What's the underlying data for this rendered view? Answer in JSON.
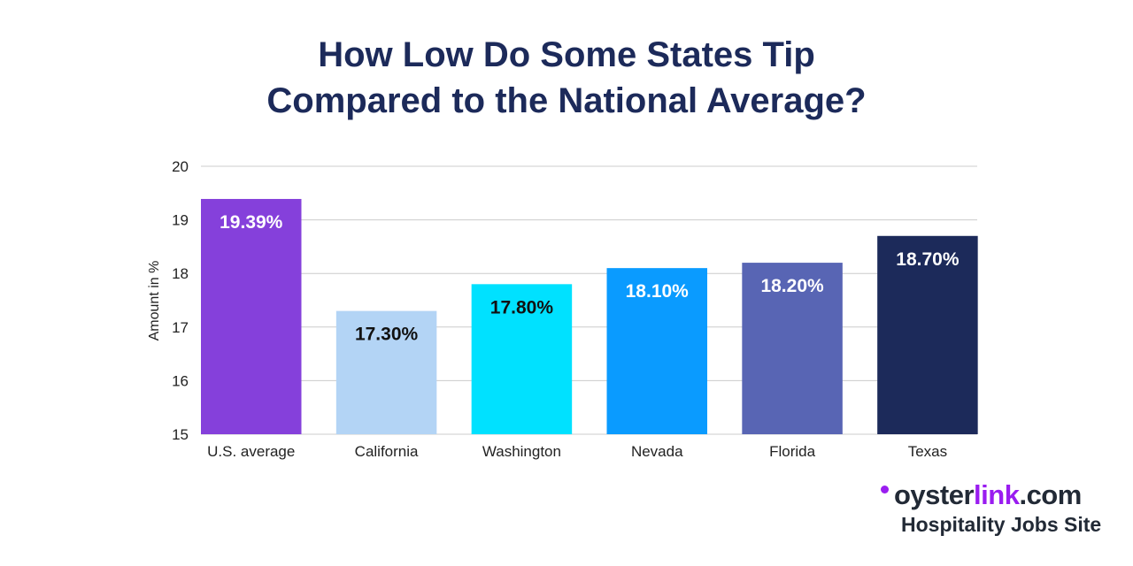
{
  "chart_data": {
    "type": "bar",
    "title": [
      "How Low Do Some States Tip",
      "Compared to the National Average?"
    ],
    "xlabel": "",
    "ylabel": "Amount in %",
    "ylim": [
      15,
      20
    ],
    "yticks": [
      15,
      16,
      17,
      18,
      19,
      20
    ],
    "grid": true,
    "categories": [
      "U.S. average",
      "California",
      "Washington",
      "Nevada",
      "Florida",
      "Texas"
    ],
    "values": [
      19.39,
      17.3,
      17.8,
      18.1,
      18.2,
      18.7
    ],
    "data_labels": [
      "19.39%",
      "17.30%",
      "17.80%",
      "18.10%",
      "18.20%",
      "18.70%"
    ],
    "colors": [
      "#8540db",
      "#b3d4f5",
      "#00e1ff",
      "#0a9bff",
      "#5865b4",
      "#1c2a5a"
    ],
    "label_colors": [
      "#ffffff",
      "#111111",
      "#111111",
      "#ffffff",
      "#ffffff",
      "#ffffff"
    ]
  },
  "branding": {
    "logo_part1": "oyster",
    "logo_part2": "link",
    "logo_part3": ".com",
    "tagline": "Hospitality Jobs Site"
  }
}
